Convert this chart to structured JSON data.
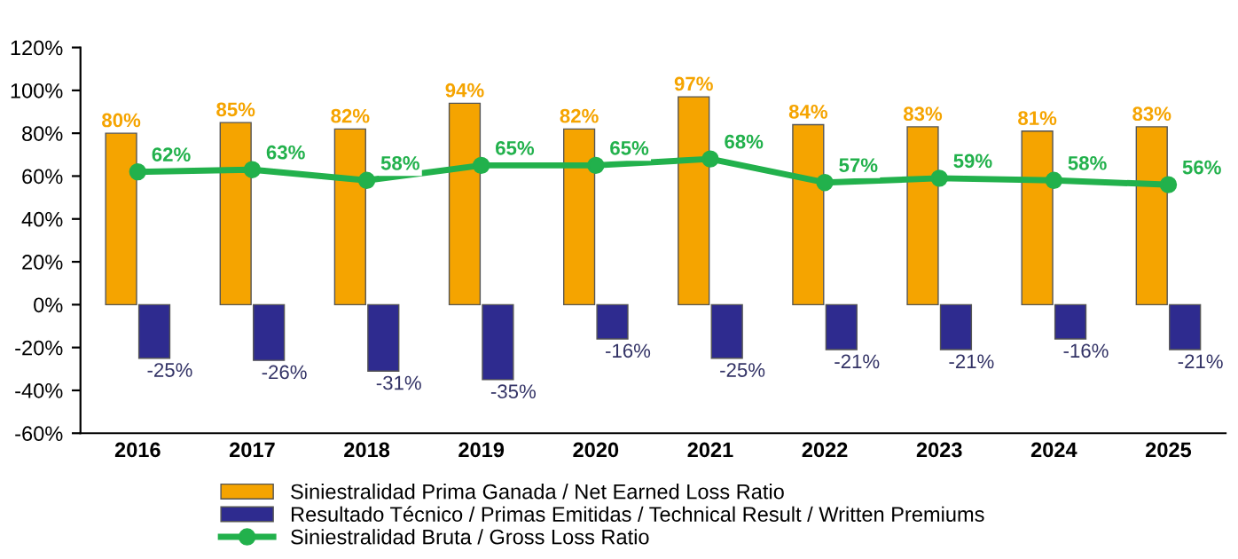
{
  "chart_data": {
    "type": "bar",
    "categories": [
      "2016",
      "2017",
      "2018",
      "2019",
      "2020",
      "2021",
      "2022",
      "2023",
      "2024",
      "2025"
    ],
    "series": [
      {
        "name": "Siniestralidad Prima Ganada / Net Earned Loss Ratio",
        "color": "#f5a400",
        "values": [
          80,
          85,
          82,
          94,
          82,
          97,
          84,
          83,
          81,
          83
        ],
        "value_labels": [
          "80%",
          "85%",
          "82%",
          "94%",
          "82%",
          "97%",
          "84%",
          "83%",
          "81%",
          "83%"
        ]
      },
      {
        "name": "Resultado Técnico / Primas Emitidas / Technical Result / Written Premiums",
        "color": "#2e2b8f",
        "values": [
          -25,
          -26,
          -31,
          -35,
          -16,
          -25,
          -21,
          -21,
          -16,
          -21
        ],
        "value_labels": [
          "-25%",
          "-26%",
          "-31%",
          "-35%",
          "-16%",
          "-25%",
          "-21%",
          "-21%",
          "-16%",
          "-21%"
        ]
      },
      {
        "name": "Siniestralidad Bruta / Gross Loss Ratio",
        "type": "line",
        "color": "#22b14c",
        "marker": "circle",
        "values": [
          62,
          63,
          58,
          65,
          65,
          68,
          57,
          59,
          58,
          56
        ],
        "value_labels": [
          "62%",
          "63%",
          "58%",
          "65%",
          "65%",
          "68%",
          "57%",
          "59%",
          "58%",
          "56%"
        ]
      }
    ],
    "ylim": [
      -60,
      120
    ],
    "yticks": [
      {
        "value": -60,
        "label": "-60%"
      },
      {
        "value": -40,
        "label": "-40%"
      },
      {
        "value": -20,
        "label": "-20%"
      },
      {
        "value": 0,
        "label": "0%"
      },
      {
        "value": 20,
        "label": "20%"
      },
      {
        "value": 40,
        "label": "40%"
      },
      {
        "value": 60,
        "label": "60%"
      },
      {
        "value": 80,
        "label": "80%"
      },
      {
        "value": 100,
        "label": "100%"
      },
      {
        "value": 120,
        "label": "120%"
      }
    ],
    "grid": false,
    "legend": "bottom"
  }
}
